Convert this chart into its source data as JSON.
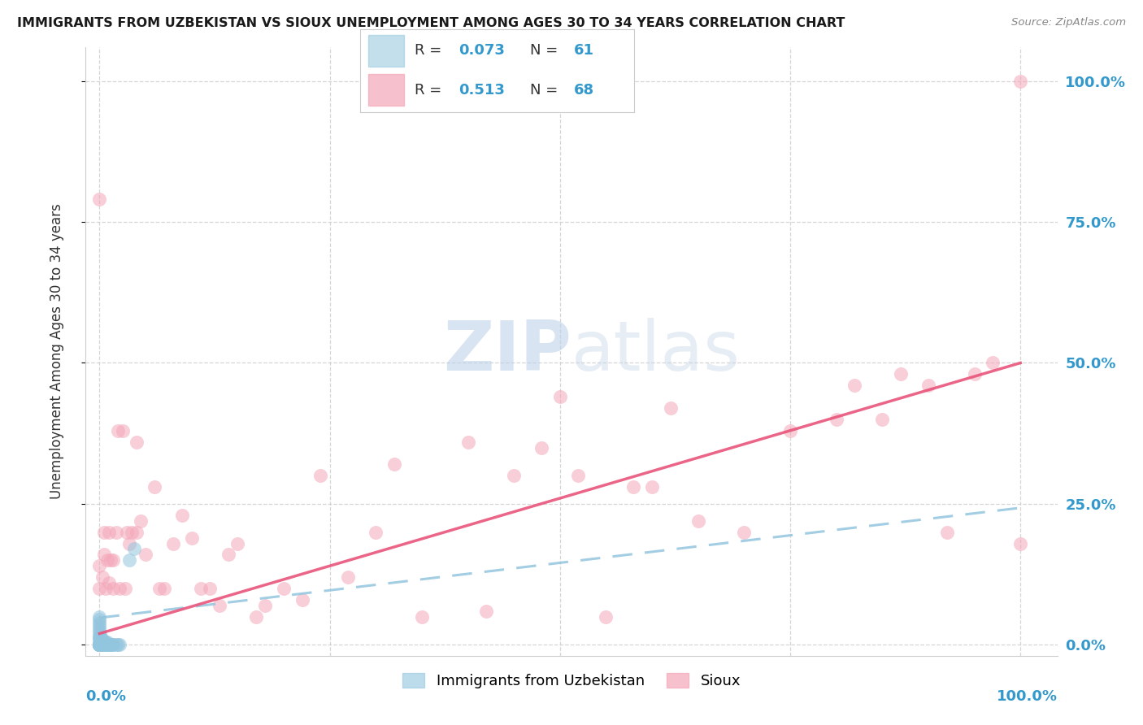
{
  "title": "IMMIGRANTS FROM UZBEKISTAN VS SIOUX UNEMPLOYMENT AMONG AGES 30 TO 34 YEARS CORRELATION CHART",
  "source": "Source: ZipAtlas.com",
  "ylabel": "Unemployment Among Ages 30 to 34 years",
  "yticks": [
    "0.0%",
    "25.0%",
    "50.0%",
    "75.0%",
    "100.0%"
  ],
  "ytick_vals": [
    0.0,
    0.25,
    0.5,
    0.75,
    1.0
  ],
  "xtick_vals": [
    0.0,
    0.25,
    0.5,
    0.75,
    1.0
  ],
  "legend_r_blue": "0.073",
  "legend_n_blue": "61",
  "legend_r_pink": "0.513",
  "legend_n_pink": "68",
  "blue_color": "#92c5de",
  "pink_color": "#f4a6b8",
  "blue_line_color": "#92c5de",
  "pink_line_color": "#e8547a",
  "watermark_zip": "ZIP",
  "watermark_atlas": "atlas",
  "blue_scatter_x": [
    0.0,
    0.0,
    0.0,
    0.0,
    0.0,
    0.0,
    0.0,
    0.0,
    0.0,
    0.0,
    0.0,
    0.0,
    0.0,
    0.0,
    0.0,
    0.0,
    0.0,
    0.0,
    0.0,
    0.0,
    0.0,
    0.0,
    0.0,
    0.0,
    0.0,
    0.0,
    0.0,
    0.0,
    0.0,
    0.0,
    0.001,
    0.001,
    0.001,
    0.001,
    0.002,
    0.002,
    0.002,
    0.003,
    0.003,
    0.004,
    0.004,
    0.005,
    0.005,
    0.006,
    0.006,
    0.007,
    0.007,
    0.008,
    0.008,
    0.009,
    0.01,
    0.011,
    0.012,
    0.013,
    0.014,
    0.015,
    0.018,
    0.02,
    0.022,
    0.032,
    0.038
  ],
  "blue_scatter_y": [
    0.0,
    0.0,
    0.0,
    0.0,
    0.0,
    0.0,
    0.0,
    0.0,
    0.0,
    0.0,
    0.0,
    0.0,
    0.0,
    0.0,
    0.0,
    0.0,
    0.0,
    0.0,
    0.0,
    0.0,
    0.01,
    0.01,
    0.015,
    0.02,
    0.025,
    0.03,
    0.035,
    0.04,
    0.045,
    0.05,
    0.0,
    0.005,
    0.01,
    0.015,
    0.0,
    0.005,
    0.01,
    0.0,
    0.005,
    0.0,
    0.005,
    0.0,
    0.005,
    0.0,
    0.005,
    0.0,
    0.005,
    0.0,
    0.005,
    0.0,
    0.0,
    0.0,
    0.0,
    0.0,
    0.0,
    0.0,
    0.0,
    0.0,
    0.0,
    0.15,
    0.17
  ],
  "pink_scatter_x": [
    0.0,
    0.0,
    0.0,
    0.003,
    0.005,
    0.005,
    0.007,
    0.008,
    0.01,
    0.01,
    0.012,
    0.015,
    0.015,
    0.018,
    0.02,
    0.022,
    0.025,
    0.028,
    0.03,
    0.032,
    0.035,
    0.04,
    0.04,
    0.045,
    0.05,
    0.06,
    0.065,
    0.07,
    0.08,
    0.09,
    0.1,
    0.11,
    0.12,
    0.13,
    0.14,
    0.15,
    0.17,
    0.18,
    0.2,
    0.22,
    0.24,
    0.27,
    0.3,
    0.32,
    0.35,
    0.4,
    0.42,
    0.45,
    0.48,
    0.5,
    0.52,
    0.55,
    0.58,
    0.6,
    0.62,
    0.65,
    0.7,
    0.75,
    0.8,
    0.82,
    0.85,
    0.87,
    0.9,
    0.92,
    0.95,
    0.97,
    1.0,
    1.0
  ],
  "pink_scatter_y": [
    0.1,
    0.14,
    0.79,
    0.12,
    0.16,
    0.2,
    0.1,
    0.15,
    0.11,
    0.2,
    0.15,
    0.1,
    0.15,
    0.2,
    0.38,
    0.1,
    0.38,
    0.1,
    0.2,
    0.18,
    0.2,
    0.2,
    0.36,
    0.22,
    0.16,
    0.28,
    0.1,
    0.1,
    0.18,
    0.23,
    0.19,
    0.1,
    0.1,
    0.07,
    0.16,
    0.18,
    0.05,
    0.07,
    0.1,
    0.08,
    0.3,
    0.12,
    0.2,
    0.32,
    0.05,
    0.36,
    0.06,
    0.3,
    0.35,
    0.44,
    0.3,
    0.05,
    0.28,
    0.28,
    0.42,
    0.22,
    0.2,
    0.38,
    0.4,
    0.46,
    0.4,
    0.48,
    0.46,
    0.2,
    0.48,
    0.5,
    0.18,
    1.0
  ]
}
